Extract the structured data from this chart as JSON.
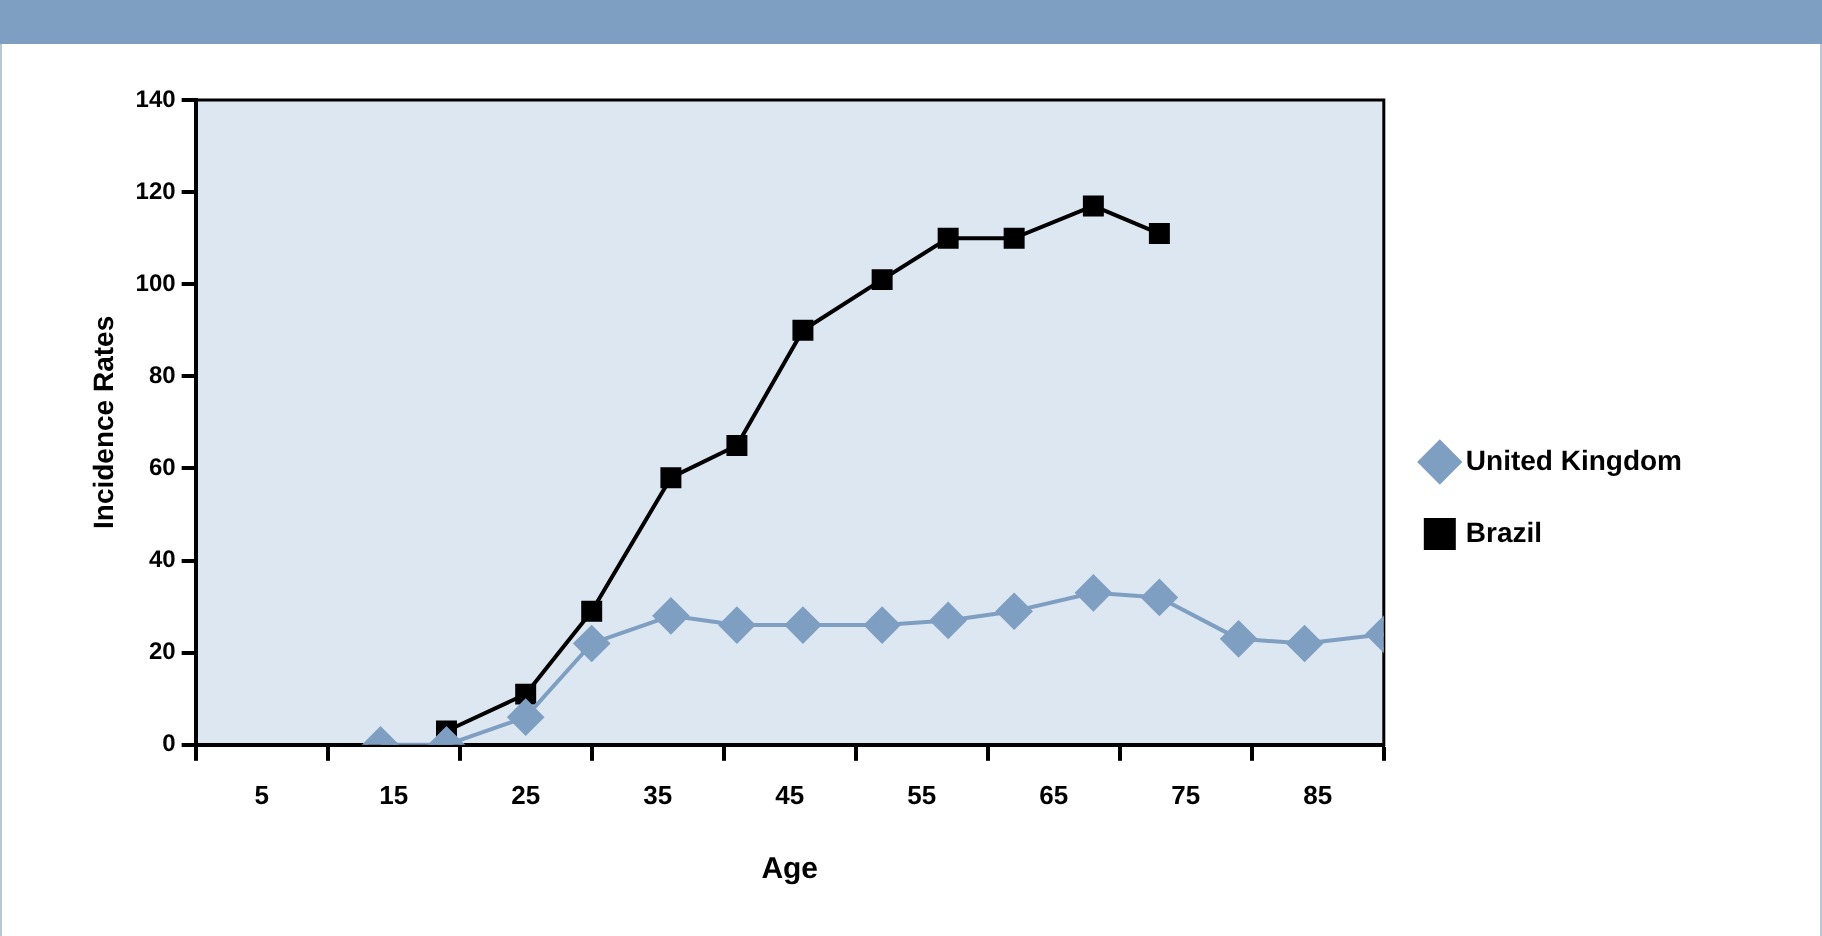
{
  "chart_data": {
    "type": "line",
    "xlabel": "Age",
    "ylabel": "Incidence Rates",
    "xlim": [
      0,
      90
    ],
    "xticks": [
      {
        "value": 0,
        "label": null
      },
      {
        "value": 5,
        "label": "5"
      },
      {
        "value": 10,
        "label": null
      },
      {
        "value": 15,
        "label": "15"
      },
      {
        "value": 20,
        "label": null
      },
      {
        "value": 25,
        "label": "25"
      },
      {
        "value": 30,
        "label": null
      },
      {
        "value": 35,
        "label": "35"
      },
      {
        "value": 40,
        "label": null
      },
      {
        "value": 45,
        "label": "45"
      },
      {
        "value": 50,
        "label": null
      },
      {
        "value": 55,
        "label": "55"
      },
      {
        "value": 60,
        "label": null
      },
      {
        "value": 65,
        "label": "65"
      },
      {
        "value": 70,
        "label": null
      },
      {
        "value": 75,
        "label": "75"
      },
      {
        "value": 80,
        "label": null
      },
      {
        "value": 85,
        "label": "85"
      },
      {
        "value": 90,
        "label": null
      }
    ],
    "ylim": [
      0,
      140
    ],
    "yticks": [
      0,
      20,
      40,
      60,
      80,
      100,
      120,
      140
    ],
    "series": [
      {
        "name": "United Kingdom",
        "color": "#7f9fc2",
        "marker": "diamond",
        "x": [
          14,
          19,
          25,
          30,
          36,
          41,
          46,
          52,
          57,
          62,
          68,
          73,
          79,
          84,
          90
        ],
        "values": [
          0,
          0,
          6,
          22,
          28,
          26,
          26,
          26,
          27,
          29,
          33,
          32,
          23,
          22,
          24
        ]
      },
      {
        "name": "Brazil",
        "color": "#000000",
        "marker": "square",
        "x": [
          19,
          25,
          30,
          36,
          41,
          46,
          52,
          57,
          62,
          68,
          73
        ],
        "values": [
          3,
          11,
          29,
          58,
          65,
          90,
          101,
          110,
          110,
          117,
          111
        ]
      }
    ],
    "grid": false,
    "legend": "right",
    "line_style": "solid"
  }
}
